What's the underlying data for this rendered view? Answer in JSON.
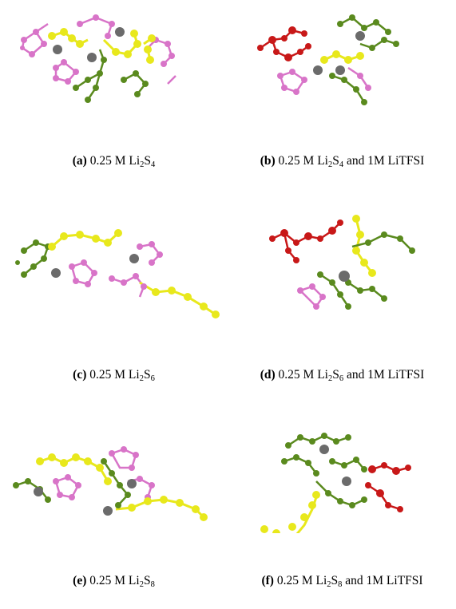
{
  "colors": {
    "sulfur": "#e8e81c",
    "lithium": "#6b6b6b",
    "solvent_green": "#5a8a1e",
    "solvent_pink": "#d874c8",
    "tfsi_red": "#c81818"
  },
  "panels": [
    {
      "id": "a",
      "label": "(a)",
      "prefix": "0.25 M Li",
      "sub1": "2",
      "mid": "S",
      "sub2": "4",
      "suffix": ""
    },
    {
      "id": "b",
      "label": "(b)",
      "prefix": "0.25 M Li",
      "sub1": "2",
      "mid": "S",
      "sub2": "4",
      "suffix": " and 1M LiTFSI"
    },
    {
      "id": "c",
      "label": "(c)",
      "prefix": "0.25 M Li",
      "sub1": "2",
      "mid": "S",
      "sub2": "6",
      "suffix": ""
    },
    {
      "id": "d",
      "label": "(d)",
      "prefix": "0.25 M Li",
      "sub1": "2",
      "mid": "S",
      "sub2": "6",
      "suffix": " and 1M LiTFSI"
    },
    {
      "id": "e",
      "label": "(e)",
      "prefix": "0.25 M Li",
      "sub1": "2",
      "mid": "S",
      "sub2": "8",
      "suffix": ""
    },
    {
      "id": "f",
      "label": "(f)",
      "prefix": "0.25 M Li",
      "sub1": "2",
      "mid": "S",
      "sub2": "8",
      "suffix": " and 1M LiTFSI"
    }
  ]
}
